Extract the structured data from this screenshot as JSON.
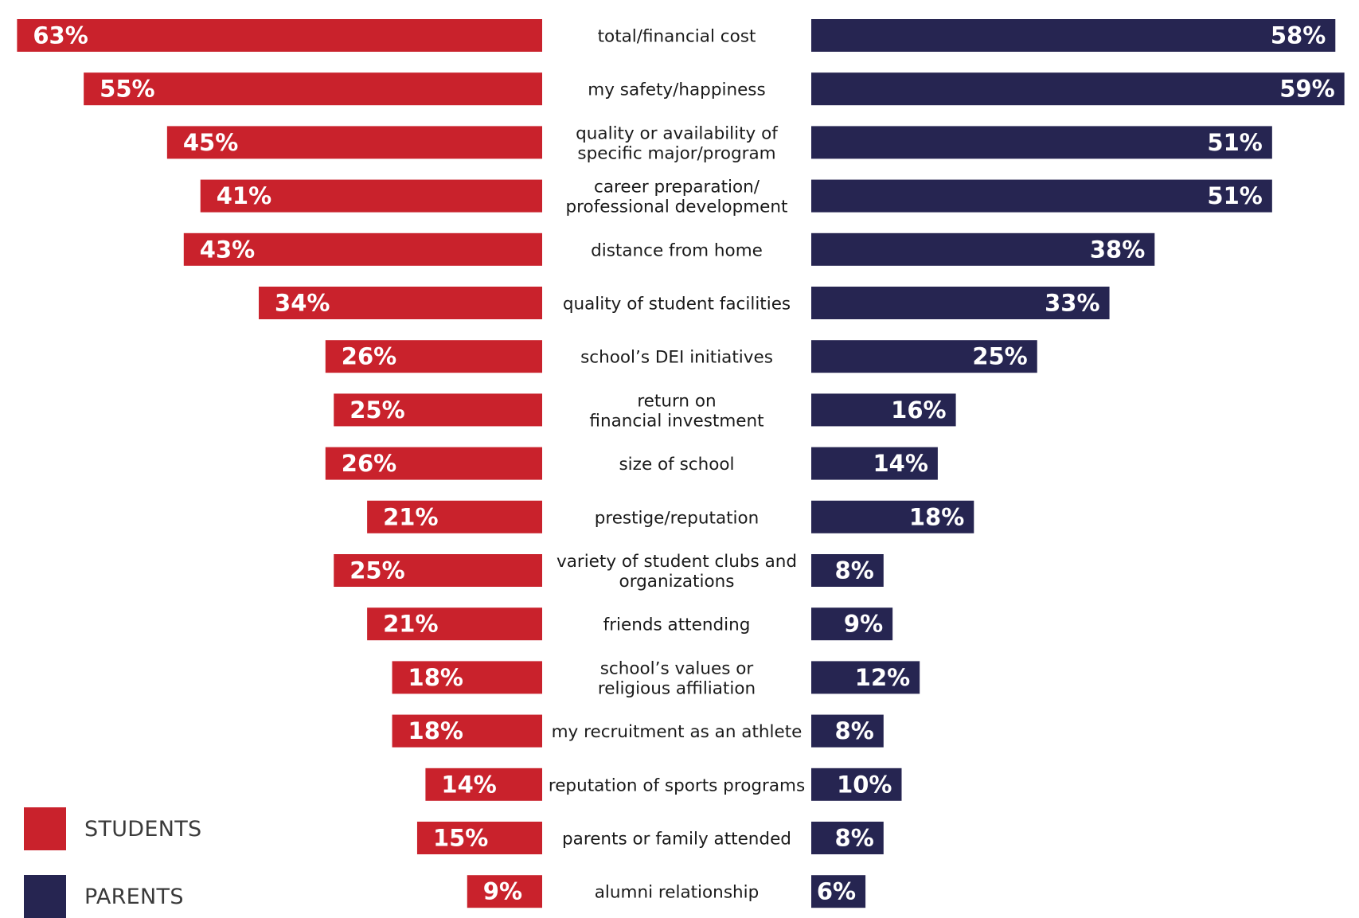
{
  "chart_data": {
    "type": "bar",
    "orientation": "horizontal-diverging",
    "title": "",
    "xlabel": "",
    "ylabel": "",
    "categories": [
      "total/financial cost",
      "my safety/happiness",
      "quality or availability of\nspecific major/program",
      "career preparation/\nprofessional development",
      "distance from home",
      "quality of student facilities",
      "school’s DEI initiatives",
      "return on\nfinancial investment",
      "size of school",
      "prestige/reputation",
      "variety of student clubs and\norganizations",
      "friends attending",
      "school’s values or\nreligious affiliation",
      "my recruitment as an athlete",
      "reputation of sports programs",
      "parents or family attended",
      "alumni relationship"
    ],
    "series": [
      {
        "name": "STUDENTS",
        "color": "#C9222C",
        "side": "left",
        "values": [
          63,
          55,
          45,
          41,
          43,
          34,
          26,
          25,
          26,
          21,
          25,
          21,
          18,
          18,
          14,
          15,
          9
        ]
      },
      {
        "name": "PARENTS",
        "color": "#262551",
        "side": "right",
        "values": [
          58,
          59,
          51,
          51,
          38,
          33,
          25,
          16,
          14,
          18,
          8,
          9,
          12,
          8,
          10,
          8,
          6
        ]
      }
    ],
    "value_suffix": "%",
    "grid": false,
    "legend_position": "bottom-left"
  },
  "legend": {
    "items": [
      {
        "label": "STUDENTS",
        "color": "#C9222C"
      },
      {
        "label": "PARENTS",
        "color": "#262551"
      }
    ]
  }
}
